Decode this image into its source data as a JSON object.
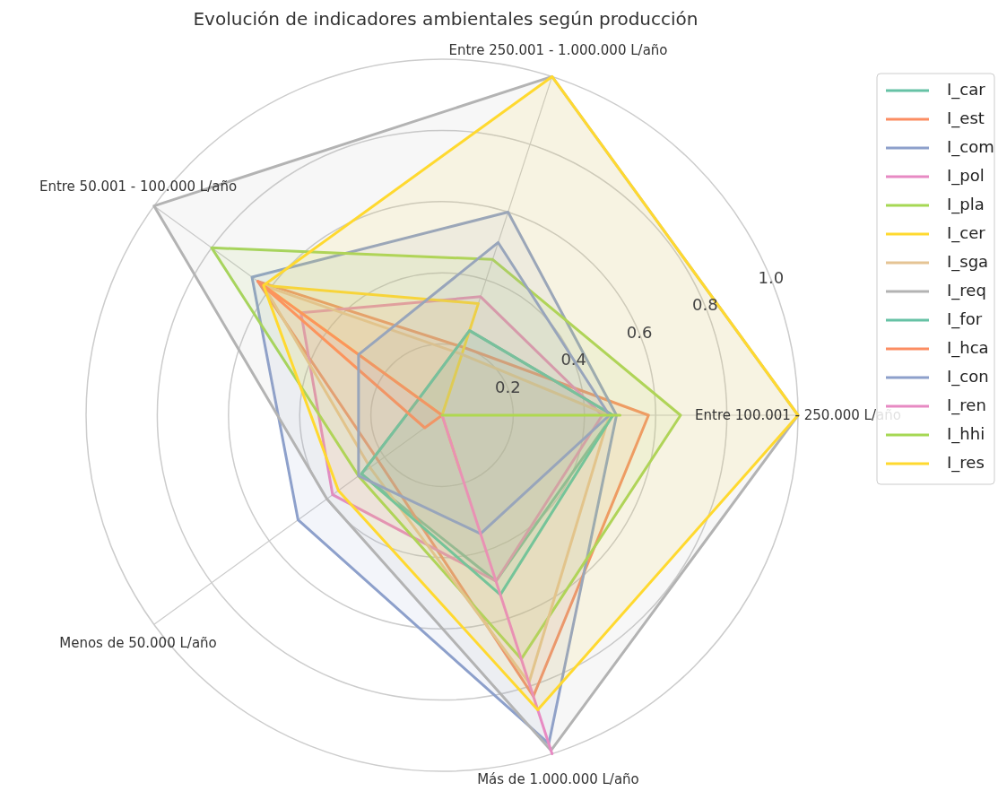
{
  "chart_data": {
    "type": "radar",
    "title": "Evolución de indicadores ambientales según producción",
    "categories": [
      "Entre 250.001 - 1.000.000 L/año",
      "Entre 100.001 - 250.000 L/año",
      "Más de 1.000.000 L/año",
      "Menos de 50.000 L/año",
      "Entre 50.001 - 100.000 L/año"
    ],
    "ylim": [
      0,
      1
    ],
    "yticks": [
      0.2,
      0.4,
      0.6,
      0.8,
      {
        "value": 1,
        "label": "1.0"
      }
    ],
    "grid": true,
    "legend": "top right",
    "series": [
      {
        "name": "I_car",
        "color": "#66c2a5",
        "values": [
          0.25,
          0.48,
          0.49,
          0.28,
          0.08
        ]
      },
      {
        "name": "I_est",
        "color": "#fc8d62",
        "values": [
          0.2,
          0.58,
          0.83,
          0.22,
          0.64
        ]
      },
      {
        "name": "I_com",
        "color": "#8da0cb",
        "values": [
          0.6,
          0.49,
          0.97,
          0.5,
          0.66
        ]
      },
      {
        "name": "I_pol",
        "color": "#e78ac3",
        "values": [
          0.35,
          0.45,
          0.49,
          0.38,
          0.49
        ]
      },
      {
        "name": "I_pla",
        "color": "#a6d854",
        "values": [
          0.46,
          0.67,
          0.72,
          0.29,
          0.8
        ]
      },
      {
        "name": "I_cer",
        "color": "#ffd92f",
        "values": [
          0.33,
          0,
          0.16,
          0,
          0.62
        ]
      },
      {
        "name": "I_sga",
        "color": "#e5c494",
        "values": [
          0.18,
          0.47,
          0.79,
          0.25,
          0.62
        ]
      },
      {
        "name": "I_req",
        "color": "#b3b3b3",
        "values": [
          1,
          1,
          0.99,
          0.4,
          1
        ]
      },
      {
        "name": "I_for",
        "color": "#66c2a5",
        "values": [
          0.25,
          0.48,
          0.53,
          0.28,
          0.08
        ]
      },
      {
        "name": "I_hca",
        "color": "#fc8d62",
        "values": [
          0,
          0,
          0,
          0.06,
          0.64
        ]
      },
      {
        "name": "I_con",
        "color": "#8da0cb",
        "values": [
          0.51,
          0.47,
          0.35,
          0.29,
          0.29
        ]
      },
      {
        "name": "I_ren",
        "color": "#e78ac3",
        "values": [
          0,
          0,
          1,
          0,
          0
        ]
      },
      {
        "name": "I_hhi",
        "color": "#a6d854",
        "values": [
          0,
          0.5,
          0,
          0,
          0
        ]
      },
      {
        "name": "I_res",
        "color": "#ffd92f",
        "values": [
          1,
          1,
          0.87,
          0.36,
          0.62
        ]
      }
    ]
  }
}
